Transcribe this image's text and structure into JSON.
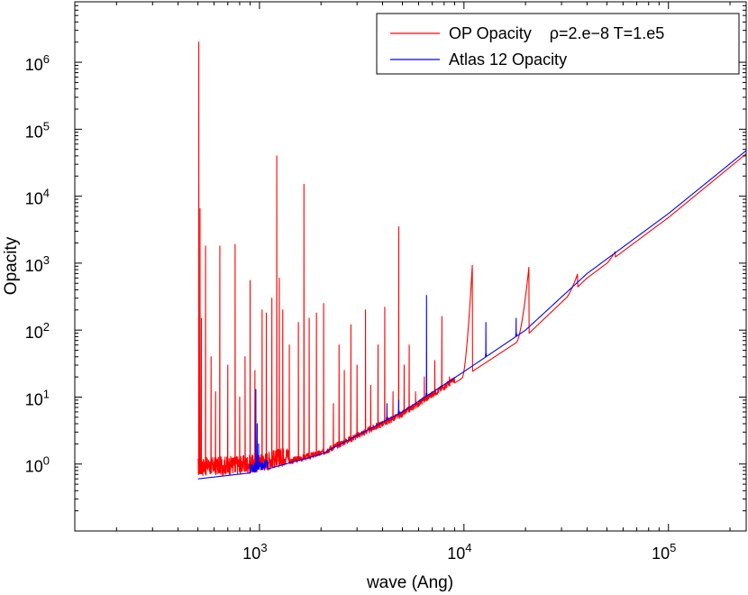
{
  "chart_data": {
    "type": "line",
    "title": "",
    "xlabel": "wave (Ang)",
    "ylabel": "Opacity",
    "xscale": "log",
    "yscale": "log",
    "xlim": [
      125,
      240000
    ],
    "ylim": [
      0.1,
      8000000
    ],
    "grid": false,
    "legend_position": "top-right",
    "x_ticks": [
      {
        "value": 1000,
        "base": "10",
        "exp": "3"
      },
      {
        "value": 10000,
        "base": "10",
        "exp": "4"
      },
      {
        "value": 100000,
        "base": "10",
        "exp": "5"
      }
    ],
    "y_ticks": [
      {
        "value": 1,
        "base": "10",
        "exp": "0"
      },
      {
        "value": 10,
        "base": "10",
        "exp": "1"
      },
      {
        "value": 100,
        "base": "10",
        "exp": "2"
      },
      {
        "value": 1000,
        "base": "10",
        "exp": "3"
      },
      {
        "value": 10000,
        "base": "10",
        "exp": "4"
      },
      {
        "value": 100000,
        "base": "10",
        "exp": "5"
      },
      {
        "value": 1000000,
        "base": "10",
        "exp": "6"
      }
    ],
    "series": [
      {
        "name": "OP Opacity    ρ=2.e−8 T=1.e5",
        "color": "#ff0000",
        "baseline": [
          [
            500,
            0.65
          ],
          [
            950,
            0.72
          ],
          [
            2000,
            1.3
          ],
          [
            5000,
            5
          ],
          [
            10000,
            20
          ],
          [
            20000,
            80
          ],
          [
            40000,
            600
          ],
          [
            100000,
            4800
          ],
          [
            240000,
            43000
          ]
        ],
        "spikes": [
          [
            505,
            2000000
          ],
          [
            512,
            6500
          ],
          [
            520,
            150
          ],
          [
            545,
            1800
          ],
          [
            580,
            40
          ],
          [
            610,
            12
          ],
          [
            640,
            1800
          ],
          [
            700,
            30
          ],
          [
            760,
            1900
          ],
          [
            800,
            10
          ],
          [
            850,
            40
          ],
          [
            900,
            550
          ],
          [
            950,
            25
          ],
          [
            1030,
            200
          ],
          [
            1080,
            180
          ],
          [
            1150,
            300
          ],
          [
            1215,
            40000
          ],
          [
            1250,
            600
          ],
          [
            1300,
            200
          ],
          [
            1400,
            60
          ],
          [
            1550,
            130
          ],
          [
            1650,
            15000
          ],
          [
            1750,
            150
          ],
          [
            1900,
            180
          ],
          [
            2060,
            250
          ],
          [
            2300,
            8
          ],
          [
            2450,
            60
          ],
          [
            2600,
            25
          ],
          [
            2800,
            120
          ],
          [
            3000,
            30
          ],
          [
            3300,
            200
          ],
          [
            3500,
            15
          ],
          [
            3800,
            60
          ],
          [
            4100,
            220
          ],
          [
            4500,
            12
          ],
          [
            4800,
            3500
          ],
          [
            5100,
            30
          ],
          [
            5400,
            60
          ],
          [
            5800,
            12
          ],
          [
            6400,
            20
          ],
          [
            7200,
            35
          ],
          [
            7800,
            160
          ],
          [
            8500,
            20
          ]
        ],
        "bumps": [
          {
            "start": 9800,
            "end": 11000,
            "peak": 1000
          },
          {
            "start": 18000,
            "end": 20800,
            "peak": 900
          },
          {
            "start": 30000,
            "end": 36000,
            "peak": 700
          },
          {
            "start": 45000,
            "end": 55000,
            "peak": 1500
          }
        ]
      },
      {
        "name": "Atlas 12 Opacity",
        "color": "#0000ff",
        "baseline": [
          [
            500,
            0.6
          ],
          [
            950,
            0.75
          ],
          [
            2000,
            1.4
          ],
          [
            5000,
            6
          ],
          [
            10000,
            24
          ],
          [
            20000,
            100
          ],
          [
            40000,
            700
          ],
          [
            100000,
            5500
          ],
          [
            240000,
            48000
          ]
        ],
        "spikes": [
          [
            960,
            13
          ],
          [
            975,
            4
          ],
          [
            990,
            2
          ],
          [
            4200,
            8
          ],
          [
            4800,
            9
          ],
          [
            6560,
            330
          ],
          [
            12800,
            130
          ],
          [
            18000,
            150
          ]
        ],
        "bumps": []
      }
    ]
  }
}
